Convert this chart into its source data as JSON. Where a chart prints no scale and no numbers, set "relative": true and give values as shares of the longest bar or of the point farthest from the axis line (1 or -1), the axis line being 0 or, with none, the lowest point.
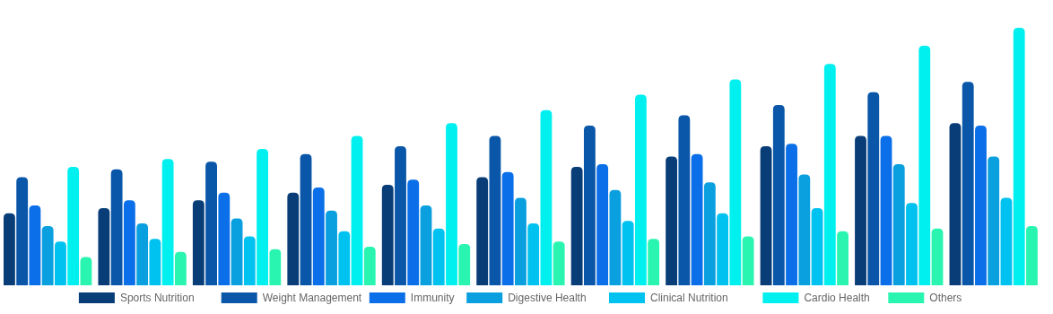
{
  "chart_data": {
    "type": "bar",
    "relative": true,
    "legend": "bottom",
    "categories": [
      null,
      null,
      null,
      null,
      null,
      null,
      null,
      null,
      null,
      null,
      null
    ],
    "series": [
      {
        "name": "Sports Nutrition",
        "color": "#083d77",
        "values": [
          0.28,
          0.3,
          0.33,
          0.36,
          0.39,
          0.42,
          0.46,
          0.5,
          0.54,
          0.58,
          0.63
        ]
      },
      {
        "name": "Weight Management",
        "color": "#0a56a8",
        "values": [
          0.42,
          0.45,
          0.48,
          0.51,
          0.54,
          0.58,
          0.62,
          0.66,
          0.7,
          0.75,
          0.79
        ]
      },
      {
        "name": "Immunity",
        "color": "#0a6fe8",
        "values": [
          0.31,
          0.33,
          0.36,
          0.38,
          0.41,
          0.44,
          0.47,
          0.51,
          0.55,
          0.58,
          0.62
        ]
      },
      {
        "name": "Digestive Health",
        "color": "#0aa0e0",
        "values": [
          0.23,
          0.24,
          0.26,
          0.29,
          0.31,
          0.34,
          0.37,
          0.4,
          0.43,
          0.47,
          0.5
        ]
      },
      {
        "name": "Clinical Nutrition",
        "color": "#00c2f0",
        "values": [
          0.17,
          0.18,
          0.19,
          0.21,
          0.22,
          0.24,
          0.25,
          0.28,
          0.3,
          0.32,
          0.34
        ]
      },
      {
        "name": "Cardio Health",
        "color": "#00f0f0",
        "values": [
          0.46,
          0.49,
          0.53,
          0.58,
          0.63,
          0.68,
          0.74,
          0.8,
          0.86,
          0.93,
          1
        ]
      },
      {
        "name": "Others",
        "color": "#2af5b0",
        "values": [
          0.11,
          0.13,
          0.14,
          0.15,
          0.16,
          0.17,
          0.18,
          0.19,
          0.21,
          0.22,
          0.23
        ]
      }
    ]
  }
}
